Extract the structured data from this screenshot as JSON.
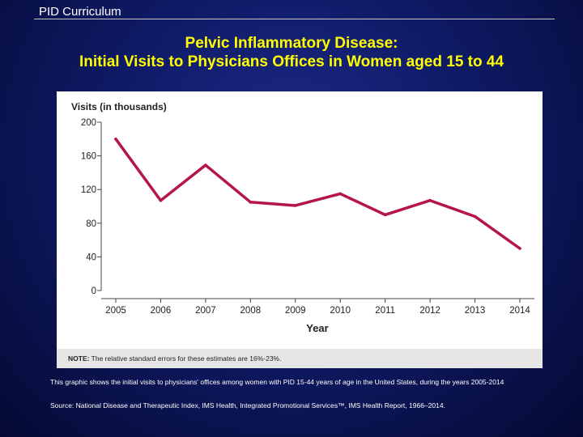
{
  "header": {
    "label": "PID Curriculum"
  },
  "slide": {
    "title_line1": "Pelvic Inflammatory Disease:",
    "title_line2": "Initial Visits to Physicians Offices in Women aged 15 to 44",
    "caption": "This graphic shows the initial visits to physicians' offices among women with PID 15-44 years of age in the United States, during the years 2005-2014",
    "source": "Source: National Disease and Therapeutic Index, IMS Health, Integrated Promotional Services™, IMS Health Report, 1966–2014."
  },
  "chart_data": {
    "type": "line",
    "title": "",
    "ylabel": "Visits (in thousands)",
    "xlabel": "Year",
    "categories": [
      "2005",
      "2006",
      "2007",
      "2008",
      "2009",
      "2010",
      "2011",
      "2012",
      "2013",
      "2014"
    ],
    "yticks": [
      0,
      40,
      80,
      120,
      160,
      200
    ],
    "ylim": [
      0,
      200
    ],
    "series": [
      {
        "values": [
          180,
          107,
          149,
          105,
          101,
          115,
          90,
          107,
          88,
          50
        ]
      }
    ],
    "line_color": "#b5154b",
    "grid": false,
    "note_label": "NOTE:",
    "note_text": "The relative standard errors for these estimates are 16%-23%."
  }
}
